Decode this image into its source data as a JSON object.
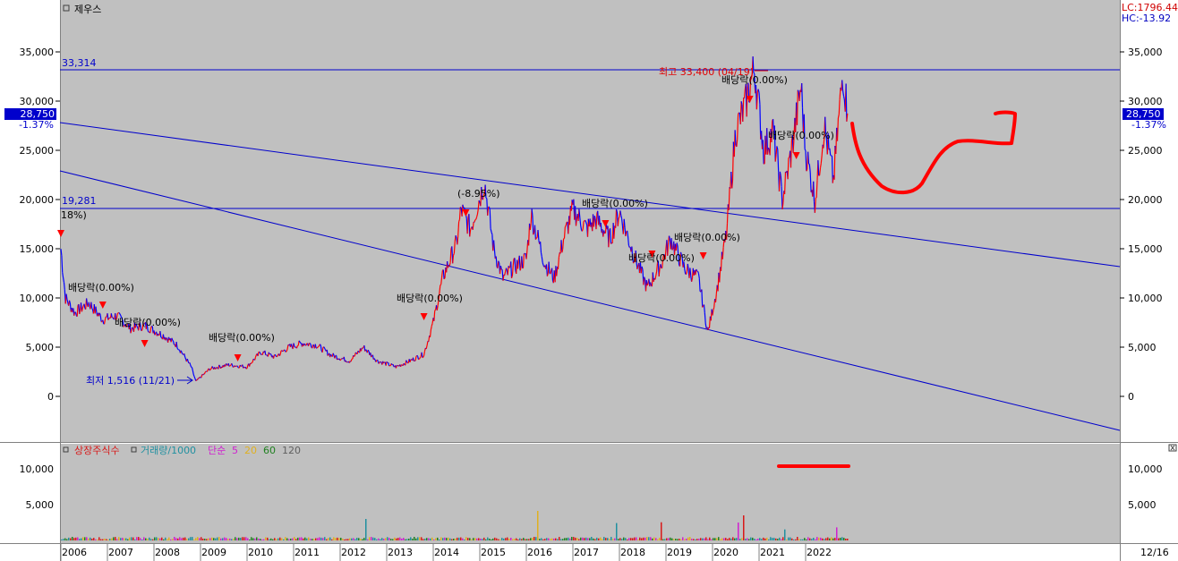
{
  "window": {
    "title": "제우스",
    "lc_label": "LC:1796.44",
    "hc_label": "HC:-13.92",
    "date_label": "12/16"
  },
  "price_panel": {
    "current_price": "28,750",
    "current_change": "-1.37%",
    "resistance_label": "33,314",
    "support_label": "19,281",
    "left_pct_label": "18%)",
    "high_annotation": "최고 33,400 (04/19)",
    "low_annotation": "최저 1,516 (11/21)",
    "dividend_labels": [
      "배당락(0.00%)",
      "배당락(0.00%)",
      "배당락(0.00%)",
      "배당락(0.00%)",
      "(-8.95%)",
      "배당락(0.00%)",
      "배당락(0.00%)",
      "배당락(0.00%)",
      "배당락(0.00%)",
      "배당락(0.00%)"
    ]
  },
  "volume_panel": {
    "legend": [
      {
        "text": "상장주식수",
        "color": "#d81818"
      },
      {
        "text": "거래량/1000",
        "color": "#2090a0"
      },
      {
        "text": "단순",
        "color": "#d020d0"
      },
      {
        "text": "5",
        "color": "#d020d0"
      },
      {
        "text": "20",
        "color": "#e0b020"
      },
      {
        "text": "60",
        "color": "#208020"
      },
      {
        "text": "120",
        "color": "#606060"
      }
    ]
  },
  "colors": {
    "background": "#c0c0c0",
    "up_candle": "#ff0000",
    "down_candle": "#0000ff",
    "trendline": "#0000cc",
    "drawing": "#ff0000"
  },
  "chart_data": {
    "type": "line",
    "title": "제우스",
    "x_ticks": [
      "2006",
      "2007",
      "2008",
      "2009",
      "2010",
      "2011",
      "2012",
      "2013",
      "2014",
      "2015",
      "2016",
      "2017",
      "2018",
      "2019",
      "2020",
      "2021",
      "2022"
    ],
    "y_ticks": [
      "35,000",
      "30,000",
      "25,000",
      "20,000",
      "15,000",
      "10,000",
      "5,000",
      "0"
    ],
    "ylim": [
      -1000,
      38000
    ],
    "volume_y_ticks": [
      "10,000",
      "5,000"
    ],
    "volume_ylim": [
      0,
      13000
    ],
    "series": [
      {
        "values": [
          [
            2006.0,
            15000
          ],
          [
            2006.1,
            10000
          ],
          [
            2006.3,
            8500
          ],
          [
            2006.6,
            9500
          ],
          [
            2006.9,
            7800
          ],
          [
            2007.2,
            8200
          ],
          [
            2007.5,
            6900
          ],
          [
            2007.8,
            7200
          ],
          [
            2008.2,
            6200
          ],
          [
            2008.5,
            5200
          ],
          [
            2008.8,
            3000
          ],
          [
            2008.9,
            1516
          ],
          [
            2009.2,
            2800
          ],
          [
            2009.6,
            3200
          ],
          [
            2010.0,
            3000
          ],
          [
            2010.3,
            4500
          ],
          [
            2010.6,
            4000
          ],
          [
            2010.9,
            5000
          ],
          [
            2011.2,
            5400
          ],
          [
            2011.5,
            5200
          ],
          [
            2011.8,
            4200
          ],
          [
            2012.2,
            3600
          ],
          [
            2012.5,
            5000
          ],
          [
            2012.8,
            3600
          ],
          [
            2013.2,
            3000
          ],
          [
            2013.5,
            3600
          ],
          [
            2013.8,
            4300
          ],
          [
            2014.0,
            7500
          ],
          [
            2014.2,
            12000
          ],
          [
            2014.5,
            15500
          ],
          [
            2014.6,
            19000
          ],
          [
            2014.8,
            17000
          ],
          [
            2015.1,
            21800
          ],
          [
            2015.3,
            15000
          ],
          [
            2015.5,
            12000
          ],
          [
            2015.7,
            13000
          ],
          [
            2016.0,
            14000
          ],
          [
            2016.1,
            18500
          ],
          [
            2016.4,
            13500
          ],
          [
            2016.6,
            12000
          ],
          [
            2016.8,
            16000
          ],
          [
            2017.0,
            19000
          ],
          [
            2017.3,
            17000
          ],
          [
            2017.5,
            18000
          ],
          [
            2017.8,
            16000
          ],
          [
            2018.0,
            18800
          ],
          [
            2018.3,
            14500
          ],
          [
            2018.6,
            11000
          ],
          [
            2018.9,
            13500
          ],
          [
            2019.1,
            16000
          ],
          [
            2019.4,
            13000
          ],
          [
            2019.7,
            12000
          ],
          [
            2019.9,
            6500
          ],
          [
            2020.1,
            11000
          ],
          [
            2020.3,
            16500
          ],
          [
            2020.5,
            27000
          ],
          [
            2020.7,
            29500
          ],
          [
            2020.9,
            33400
          ],
          [
            2021.1,
            25000
          ],
          [
            2021.3,
            27000
          ],
          [
            2021.5,
            20000
          ],
          [
            2021.7,
            25000
          ],
          [
            2021.9,
            31500
          ],
          [
            2022.0,
            25000
          ],
          [
            2022.2,
            20000
          ],
          [
            2022.4,
            27500
          ],
          [
            2022.6,
            22000
          ],
          [
            2022.8,
            33000
          ],
          [
            2022.9,
            28750
          ]
        ]
      }
    ]
  }
}
